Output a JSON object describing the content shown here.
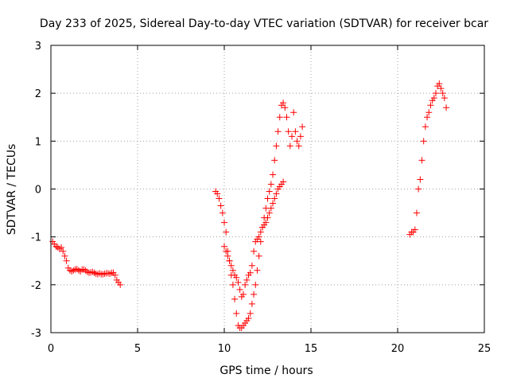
{
  "chart_data": {
    "type": "scatter",
    "title": "Day 233 of 2025, Sidereal Day-to-day VTEC variation (SDTVAR) for receiver bcar",
    "xlabel": "GPS time / hours",
    "ylabel": "SDTVAR / TECUs",
    "xlim": [
      0,
      25
    ],
    "ylim": [
      -3,
      3
    ],
    "xticks": [
      0,
      5,
      10,
      15,
      20,
      25
    ],
    "yticks": [
      -3,
      -2,
      -1,
      0,
      1,
      2,
      3
    ],
    "xtick_labels": [
      "0",
      "5",
      "10",
      "15",
      "20",
      "25"
    ],
    "ytick_labels": [
      "-3",
      "-2",
      "-1",
      "0",
      "1",
      "2",
      "3"
    ],
    "grid": true,
    "marker": "+",
    "color": "#ff0000",
    "series": [
      {
        "name": "SDTVAR",
        "x": [
          0.1,
          0.2,
          0.3,
          0.4,
          0.5,
          0.6,
          0.7,
          0.8,
          0.9,
          1.0,
          1.1,
          1.2,
          1.3,
          1.4,
          1.5,
          1.6,
          1.7,
          1.8,
          1.9,
          2.0,
          2.1,
          2.2,
          2.3,
          2.4,
          2.5,
          2.6,
          2.7,
          2.8,
          2.9,
          3.0,
          3.1,
          3.2,
          3.3,
          3.4,
          3.5,
          3.6,
          3.7,
          3.8,
          3.9,
          4.0,
          9.5,
          9.6,
          9.7,
          9.8,
          9.9,
          10.0,
          10.1,
          10.2,
          10.3,
          10.4,
          10.5,
          10.6,
          10.7,
          10.8,
          10.9,
          11.0,
          11.1,
          11.2,
          11.3,
          11.4,
          11.5,
          11.6,
          11.7,
          11.8,
          11.9,
          12.0,
          12.1,
          12.2,
          12.3,
          12.4,
          12.5,
          12.6,
          12.7,
          12.8,
          12.9,
          13.0,
          13.1,
          13.2,
          13.3,
          13.4,
          13.5,
          13.6,
          13.7,
          13.8,
          13.9,
          14.0,
          14.1,
          14.2,
          14.3,
          14.4,
          14.5,
          10.0,
          10.1,
          10.2,
          10.3,
          10.4,
          10.5,
          10.6,
          10.7,
          10.8,
          10.9,
          11.0,
          11.1,
          11.2,
          11.3,
          11.4,
          11.5,
          11.6,
          11.7,
          11.8,
          11.9,
          12.0,
          12.1,
          12.2,
          12.3,
          12.4,
          12.5,
          12.6,
          12.7,
          12.8,
          12.9,
          13.0,
          13.1,
          13.2,
          13.3,
          13.4,
          20.7,
          20.8,
          20.9,
          21.0,
          21.1,
          21.2,
          21.3,
          21.4,
          21.5,
          21.6,
          21.7,
          21.8,
          21.9,
          22.0,
          22.1,
          22.2,
          22.3,
          22.4,
          22.5,
          22.6,
          22.7,
          22.8
        ],
        "y": [
          -1.1,
          -1.15,
          -1.2,
          -1.22,
          -1.25,
          -1.22,
          -1.3,
          -1.4,
          -1.5,
          -1.65,
          -1.7,
          -1.72,
          -1.7,
          -1.68,
          -1.67,
          -1.7,
          -1.72,
          -1.68,
          -1.68,
          -1.7,
          -1.73,
          -1.75,
          -1.74,
          -1.73,
          -1.75,
          -1.77,
          -1.78,
          -1.76,
          -1.78,
          -1.78,
          -1.77,
          -1.76,
          -1.76,
          -1.77,
          -1.75,
          -1.75,
          -1.8,
          -1.9,
          -1.95,
          -2.0,
          -0.05,
          -0.1,
          -0.2,
          -0.35,
          -0.5,
          -0.7,
          -0.9,
          -1.3,
          -1.5,
          -1.8,
          -2.0,
          -2.3,
          -2.6,
          -2.85,
          -2.9,
          -2.9,
          -2.85,
          -2.8,
          -2.75,
          -2.7,
          -2.6,
          -2.4,
          -2.2,
          -2.0,
          -1.7,
          -1.4,
          -1.1,
          -0.8,
          -0.6,
          -0.4,
          -0.2,
          -0.05,
          0.1,
          0.3,
          0.6,
          0.9,
          1.2,
          1.5,
          1.75,
          1.8,
          1.7,
          1.5,
          1.2,
          0.9,
          1.1,
          1.6,
          1.2,
          1.0,
          0.9,
          1.1,
          1.3,
          -1.2,
          -1.3,
          -1.4,
          -1.5,
          -1.6,
          -1.7,
          -1.8,
          -1.85,
          -1.95,
          -2.1,
          -2.25,
          -2.2,
          -2.0,
          -1.9,
          -1.8,
          -1.75,
          -1.6,
          -1.3,
          -1.1,
          -1.05,
          -1.0,
          -0.9,
          -0.8,
          -0.75,
          -0.7,
          -0.6,
          -0.5,
          -0.4,
          -0.3,
          -0.2,
          -0.1,
          0.0,
          0.05,
          0.1,
          0.15,
          -0.95,
          -0.9,
          -0.9,
          -0.85,
          -0.5,
          0.0,
          0.2,
          0.6,
          1.0,
          1.3,
          1.5,
          1.6,
          1.75,
          1.85,
          1.9,
          2.0,
          2.15,
          2.2,
          2.1,
          2.0,
          1.9,
          1.7
        ]
      }
    ]
  }
}
